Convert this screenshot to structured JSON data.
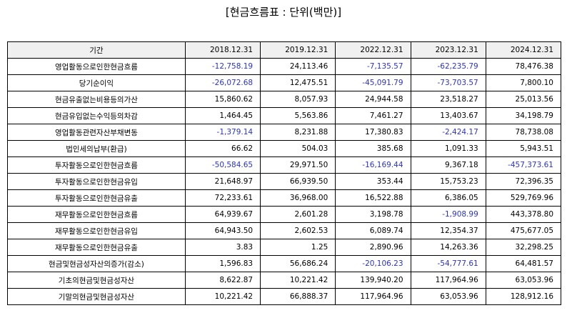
{
  "title": "[현금흐름표 : 단위(백만)]",
  "colors": {
    "negative": "#2b33cc",
    "header_bg": "#f0f0f0"
  },
  "table": {
    "header_label": "기간",
    "periods": [
      "2018.12.31",
      "2019.12.31",
      "2022.12.31",
      "2023.12.31",
      "2024.12.31"
    ],
    "rows": [
      {
        "label": "영업활동으로인한현금흐름",
        "values": [
          "-12,758.19",
          "24,113.46",
          "-7,135.57",
          "-62,235.79",
          "78,476.38"
        ]
      },
      {
        "label": "당기순이익",
        "values": [
          "-26,072.68",
          "12,475.51",
          "-45,091.79",
          "-73,703.57",
          "7,800.10"
        ]
      },
      {
        "label": "현금유출없는비용등의가산",
        "values": [
          "15,860.62",
          "8,057.93",
          "24,944.58",
          "23,518.27",
          "25,013.56"
        ]
      },
      {
        "label": "현금유입없는수익등의차감",
        "values": [
          "1,464.45",
          "5,563.86",
          "7,461.27",
          "13,403.67",
          "34,198.79"
        ]
      },
      {
        "label": "영업활동관련자산부채변동",
        "values": [
          "-1,379.14",
          "8,231.88",
          "17,380.83",
          "-2,424.17",
          "78,738.08"
        ]
      },
      {
        "label": "법인세의납부(환급)",
        "values": [
          "66.62",
          "504.03",
          "385.68",
          "1,091.33",
          "5,943.51"
        ]
      },
      {
        "label": "투자활동으로인한현금흐름",
        "values": [
          "-50,584.65",
          "29,971.50",
          "-16,169.44",
          "9,367.18",
          "-457,373.61"
        ]
      },
      {
        "label": "투자활동으로인한현금유입",
        "values": [
          "21,648.97",
          "66,939.50",
          "353.44",
          "15,753.23",
          "72,396.35"
        ]
      },
      {
        "label": "투자활동으로인한현금유출",
        "values": [
          "72,233.61",
          "36,968.00",
          "16,522.88",
          "6,386.05",
          "529,769.96"
        ]
      },
      {
        "label": "재무활동으로인한현금흐름",
        "values": [
          "64,939.67",
          "2,601.28",
          "3,198.78",
          "-1,908.99",
          "443,378.80"
        ]
      },
      {
        "label": "재무활동으로인한현금유입",
        "values": [
          "64,943.50",
          "2,602.53",
          "6,089.74",
          "12,354.37",
          "475,677.05"
        ]
      },
      {
        "label": "재무활동으로인한현금유출",
        "values": [
          "3.83",
          "1.25",
          "2,890.96",
          "14,263.36",
          "32,298.25"
        ]
      },
      {
        "label": "현금및현금성자산의증가(감소)",
        "values": [
          "1,596.83",
          "56,686.24",
          "-20,106.23",
          "-54,777.61",
          "64,481.57"
        ]
      },
      {
        "label": "기초의현금및현금성자산",
        "values": [
          "8,622.87",
          "10,221.42",
          "139,940.20",
          "117,964.96",
          "63,053.96"
        ]
      },
      {
        "label": "기말의현금및현금성자산",
        "values": [
          "10,221.42",
          "66,888.37",
          "117,964.96",
          "63,053.96",
          "128,912.16"
        ]
      }
    ]
  }
}
